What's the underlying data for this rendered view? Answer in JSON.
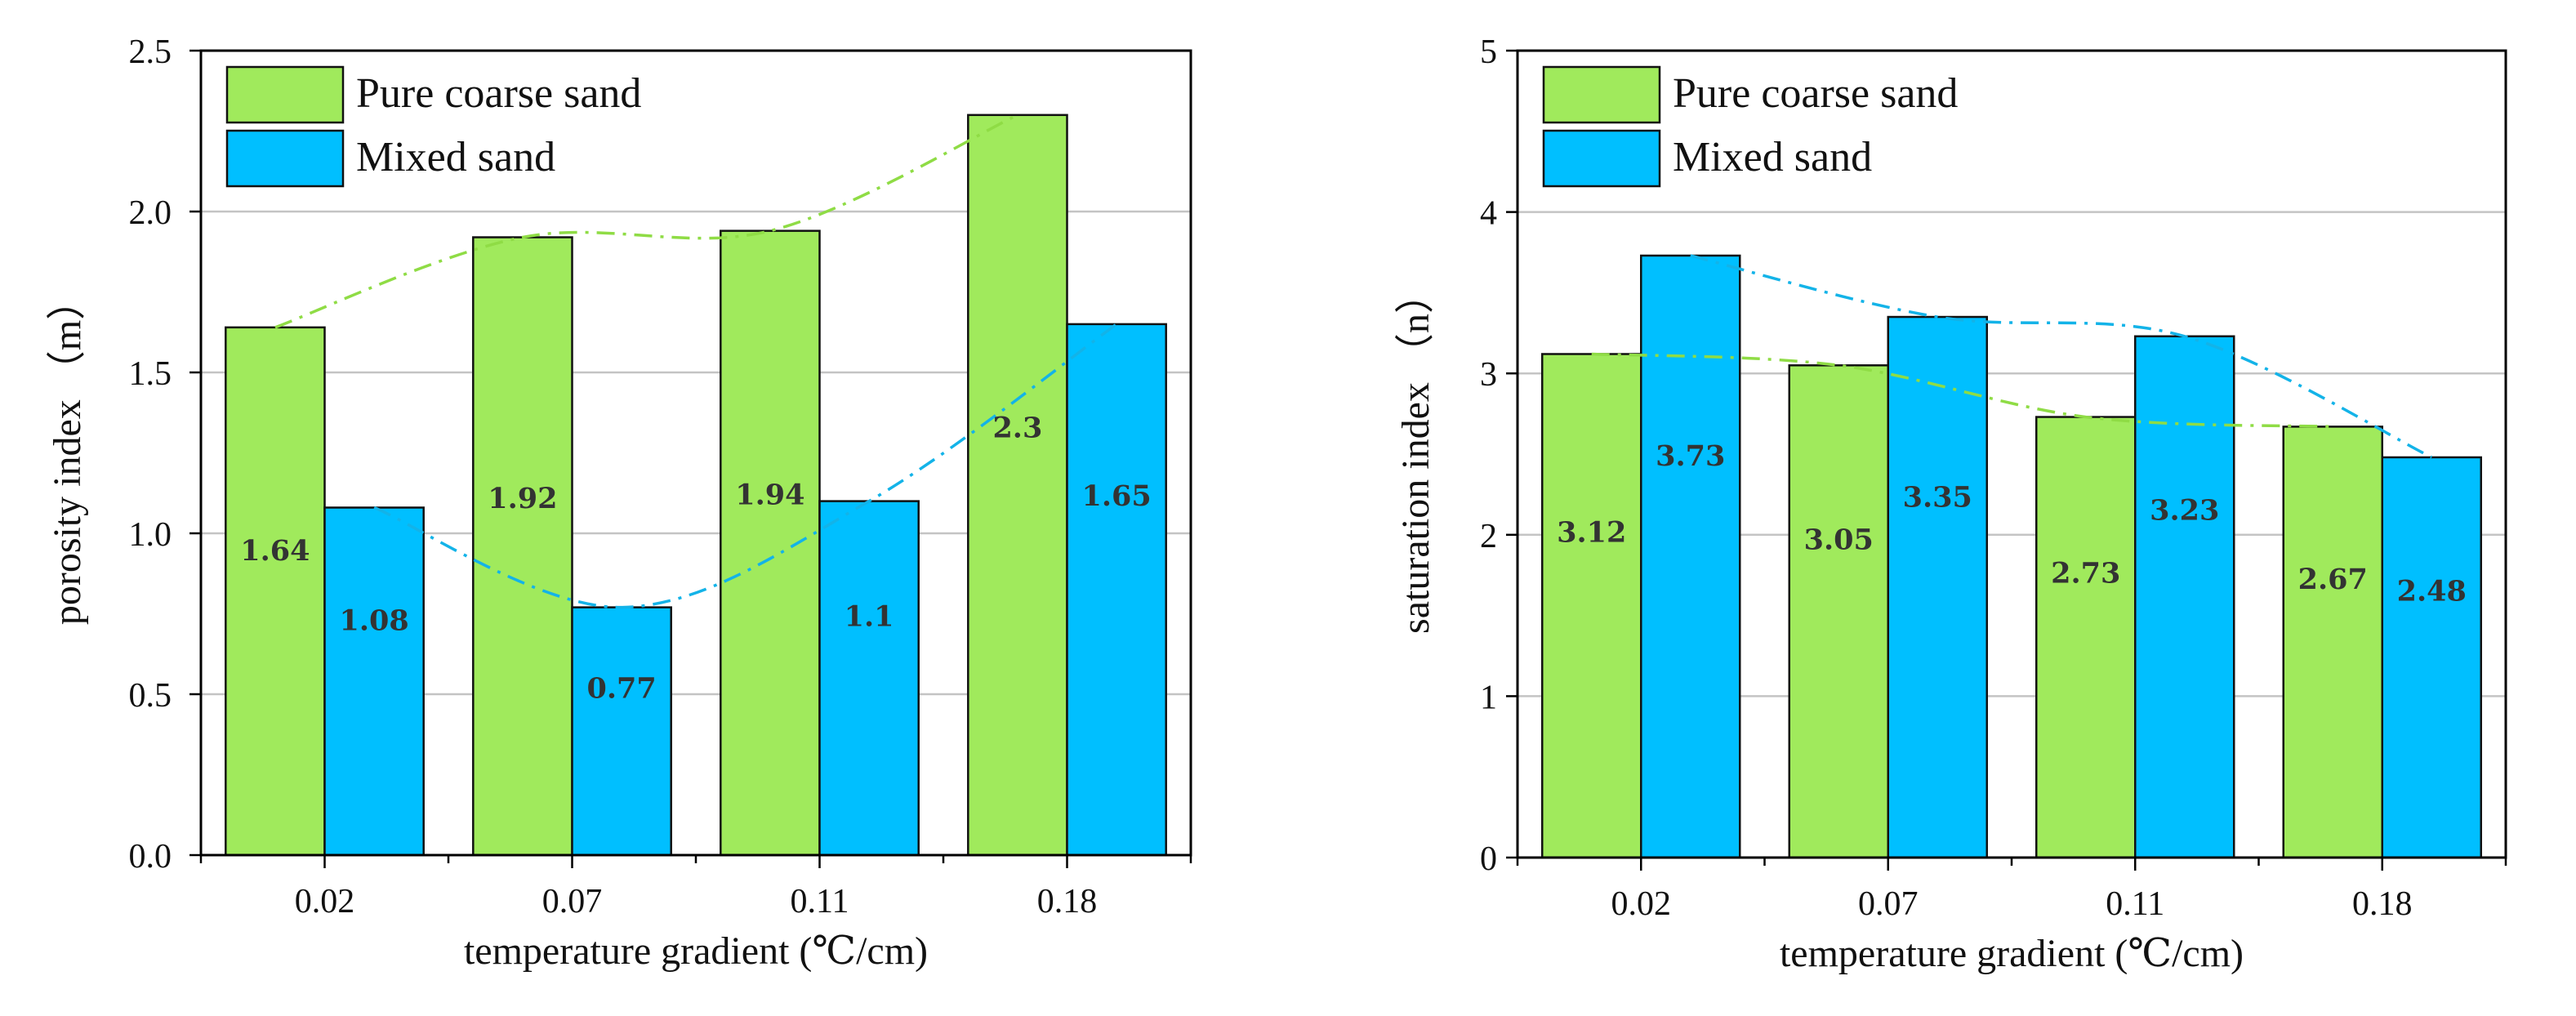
{
  "chart_data": [
    {
      "type": "bar",
      "id": "porosity",
      "categories": [
        "0.02",
        "0.07",
        "0.11",
        "0.18"
      ],
      "series": [
        {
          "name": "Pure coarse sand",
          "values": [
            1.64,
            1.92,
            1.94,
            2.3
          ],
          "labels": [
            "1.64",
            "1.92",
            "1.94",
            "2.3"
          ],
          "color": "#a0ea5c"
        },
        {
          "name": "Mixed sand",
          "values": [
            1.08,
            0.77,
            1.1,
            1.65
          ],
          "labels": [
            "1.08",
            "0.77",
            "1.1",
            "1.65"
          ],
          "color": "#00bfff"
        }
      ],
      "trend_lines": [
        {
          "series": "Pure coarse sand",
          "color": "#8fdc45",
          "style": "dash-dot"
        },
        {
          "series": "Mixed sand",
          "color": "#13b3e8",
          "style": "dash-dot"
        }
      ],
      "xlabel": "temperature gradient (℃/cm)",
      "ylabel": "porosity index （m）",
      "ylim": [
        0,
        2.5
      ],
      "yticks": [
        "0.0",
        "0.5",
        "1.0",
        "1.5",
        "2.0",
        "2.5"
      ],
      "grid": true,
      "legend_position": "top-left"
    },
    {
      "type": "bar",
      "id": "saturation",
      "categories": [
        "0.02",
        "0.07",
        "0.11",
        "0.18"
      ],
      "series": [
        {
          "name": "Pure coarse sand",
          "values": [
            3.12,
            3.05,
            2.73,
            2.67
          ],
          "labels": [
            "3.12",
            "3.05",
            "2.73",
            "2.67"
          ],
          "color": "#a0ea5c"
        },
        {
          "name": "Mixed sand",
          "values": [
            3.73,
            3.35,
            3.23,
            2.48
          ],
          "labels": [
            "3.73",
            "3.35",
            "3.23",
            "2.48"
          ],
          "color": "#00bfff"
        }
      ],
      "trend_lines": [
        {
          "series": "Pure coarse sand",
          "color": "#8fdc45",
          "style": "dash-dot"
        },
        {
          "series": "Mixed sand",
          "color": "#13b3e8",
          "style": "dash-dot"
        }
      ],
      "xlabel": "temperature gradient (℃/cm)",
      "ylabel": "saturation index （n）",
      "ylim": [
        0,
        5
      ],
      "yticks": [
        "0",
        "1",
        "2",
        "3",
        "4",
        "5"
      ],
      "grid": true,
      "legend_position": "top-left"
    }
  ]
}
